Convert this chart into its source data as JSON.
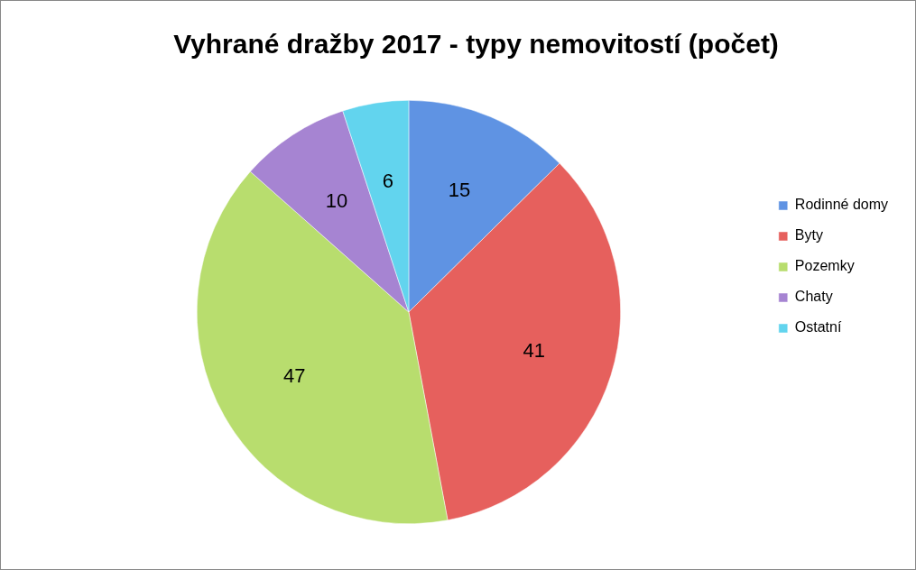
{
  "chart_data": {
    "type": "pie",
    "title": "Vyhrané dražby 2017 - typy nemovitostí (počet)",
    "categories": [
      "Rodinné domy",
      "Byty",
      "Pozemky",
      "Chaty",
      "Ostatní"
    ],
    "values": [
      15,
      41,
      47,
      10,
      6
    ],
    "colors": [
      "#5f93e3",
      "#e6605d",
      "#b8dd6e",
      "#a684d2",
      "#62d4ee"
    ],
    "data_labels": true,
    "legend": "right"
  }
}
